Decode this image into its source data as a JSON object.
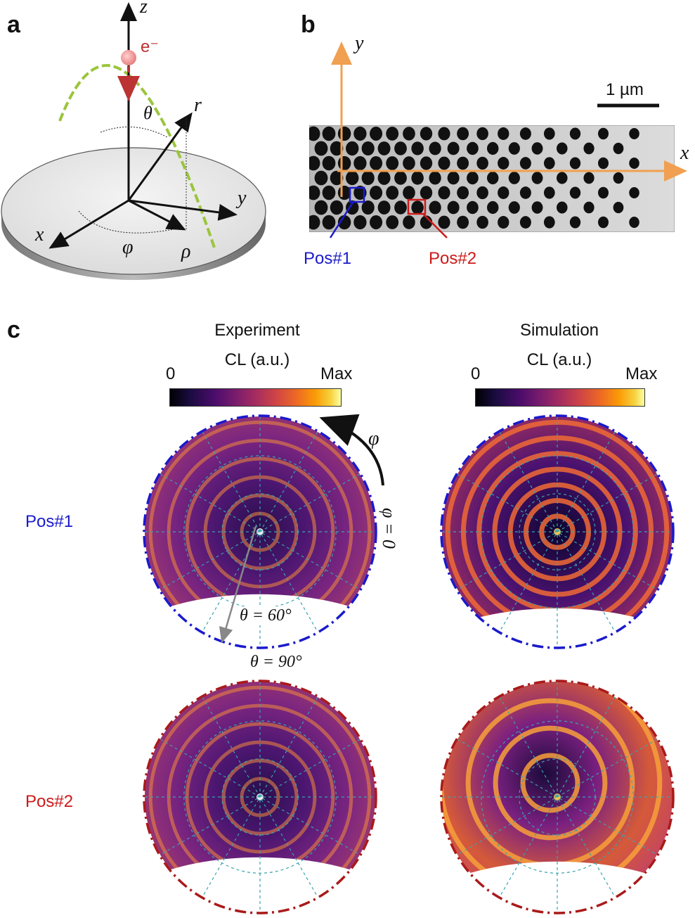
{
  "panel_a": {
    "letter": "a",
    "axis_z": "z",
    "axis_x": "x",
    "axis_y": "y",
    "axis_r": "r",
    "theta": "θ",
    "phi": "φ",
    "rho": "ρ",
    "electron": "e⁻"
  },
  "panel_b": {
    "letter": "b",
    "axis_x": "x",
    "axis_y": "y",
    "scale_bar": "1 µm",
    "pos1": "Pos#1",
    "pos2": "Pos#2"
  },
  "panel_c": {
    "letter": "c",
    "experiment_title": "Experiment",
    "simulation_title": "Simulation",
    "cb_label_left": "CL (a.u.)",
    "cb_label_right": "CL (a.u.)",
    "cb_min": "0",
    "cb_max": "Max",
    "phi_label": "φ",
    "phi_zero": "φ = 0",
    "theta60": "θ = 60°",
    "theta90": "θ = 90°",
    "row1": "Pos#1",
    "row2": "Pos#2"
  },
  "colors": {
    "pos1": "#1a1acc",
    "pos2": "#cc1a1a",
    "axes_orange": "#f0a050",
    "trajectory": "#9bc53d"
  }
}
